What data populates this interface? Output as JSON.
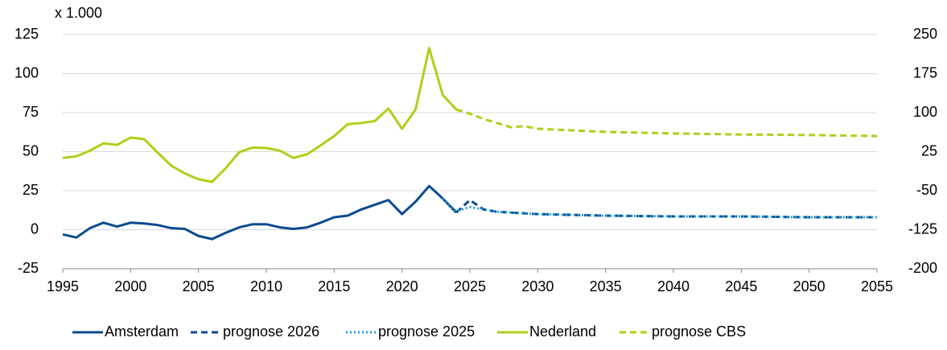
{
  "chart_data": {
    "type": "line",
    "annotation": "x 1.000",
    "xlim": [
      1995,
      2055
    ],
    "xticks": [
      1995,
      2000,
      2005,
      2010,
      2015,
      2020,
      2025,
      2030,
      2035,
      2040,
      2045,
      2050,
      2055
    ],
    "ylim": [
      -25,
      125
    ],
    "yticks": [
      -25,
      0,
      25,
      50,
      75,
      100,
      125
    ],
    "y2lim": [
      -200,
      250
    ],
    "y2ticks": [
      -200,
      -125,
      -50,
      25,
      100,
      175,
      250
    ],
    "grid": true,
    "legend": "bottom",
    "series": [
      {
        "name": "Amsterdam",
        "color": "#0b4a8f",
        "style": "solid",
        "axis": "y",
        "x": [
          1995,
          1996,
          1997,
          1998,
          1999,
          2000,
          2001,
          2002,
          2003,
          2004,
          2005,
          2006,
          2007,
          2008,
          2009,
          2010,
          2011,
          2012,
          2013,
          2014,
          2015,
          2016,
          2017,
          2018,
          2019,
          2020,
          2021,
          2022,
          2023,
          2024
        ],
        "values": [
          -3,
          -5,
          1,
          4.5,
          2,
          4.5,
          4,
          3,
          1,
          0.5,
          -4,
          -6,
          -2,
          1.5,
          3.5,
          3.5,
          1.5,
          0.5,
          1.5,
          4.5,
          8,
          9,
          13,
          16,
          19,
          10,
          18,
          28,
          20,
          11
        ]
      },
      {
        "name": "prognose 2026",
        "color": "#0b4a8f",
        "style": "dashed",
        "axis": "y",
        "x": [
          2024,
          2025,
          2026,
          2027,
          2028,
          2030,
          2035,
          2040,
          2045,
          2050,
          2055
        ],
        "values": [
          11,
          19,
          13,
          11.5,
          11,
          10,
          9,
          8.5,
          8.5,
          8,
          8
        ]
      },
      {
        "name": "prognose 2025",
        "color": "#1fa0e0",
        "style": "dotted",
        "axis": "y",
        "x": [
          2023,
          2024,
          2025,
          2026,
          2027,
          2028,
          2030,
          2035,
          2040,
          2045,
          2050,
          2055
        ],
        "values": [
          20,
          12,
          14.5,
          13,
          11.5,
          11,
          10,
          9,
          8.5,
          8.5,
          8,
          8
        ]
      },
      {
        "name": "Nederland",
        "color": "#b5cc18",
        "style": "solid",
        "axis": "y2",
        "x": [
          1995,
          1996,
          1997,
          1998,
          1999,
          2000,
          2001,
          2002,
          2003,
          2004,
          2005,
          2006,
          2007,
          2008,
          2009,
          2010,
          2011,
          2012,
          2013,
          2014,
          2015,
          2016,
          2017,
          2018,
          2019,
          2020,
          2021,
          2022,
          2023,
          2024
        ],
        "values": [
          13,
          16,
          27,
          41,
          38,
          52,
          49,
          23,
          -2,
          -17,
          -28,
          -33,
          -7,
          24,
          33,
          32,
          27,
          13,
          20,
          37,
          55,
          78,
          80,
          84,
          108,
          69,
          106,
          224,
          134,
          106
        ]
      },
      {
        "name": "prognose CBS",
        "color": "#b5cc18",
        "style": "dashed",
        "axis": "y2",
        "x": [
          2024,
          2025,
          2026,
          2027,
          2028,
          2029,
          2030,
          2035,
          2040,
          2045,
          2050,
          2055
        ],
        "values": [
          106,
          98,
          88,
          80,
          72,
          74,
          69,
          63,
          60,
          58,
          57,
          55
        ]
      }
    ]
  }
}
